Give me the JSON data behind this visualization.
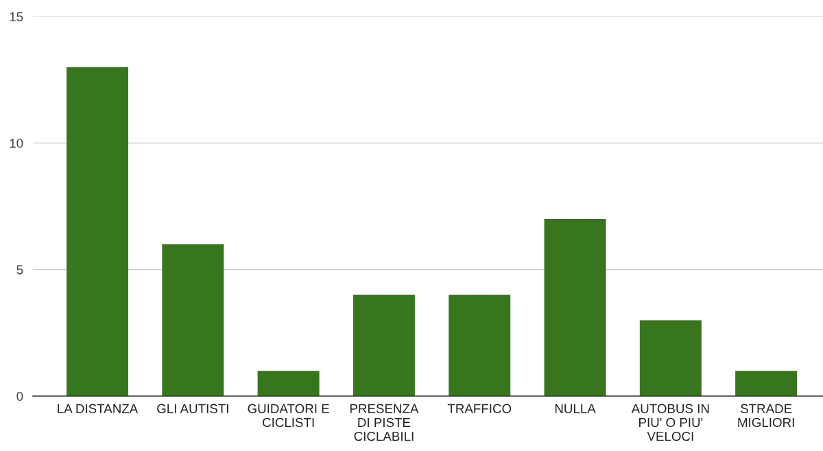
{
  "chart_data": {
    "type": "bar",
    "categories": [
      "LA DISTANZA",
      "GLI AUTISTI",
      "GUIDATORI E CICLISTI",
      "PRESENZA DI PISTE CICLABILI",
      "TRAFFICO",
      "NULLA",
      "AUTOBUS IN PIU' O PIU' VELOCI",
      "STRADE MIGLIORI"
    ],
    "values": [
      13,
      6,
      1,
      4,
      4,
      7,
      3,
      1
    ],
    "color": "#38761d",
    "ylim": [
      0,
      15
    ],
    "yticks": [
      0,
      5,
      10,
      15
    ],
    "grid": "y"
  }
}
